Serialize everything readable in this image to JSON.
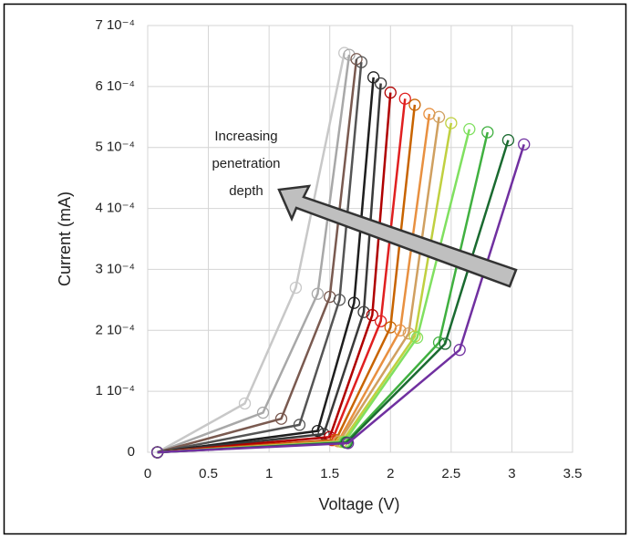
{
  "chart_data": {
    "type": "line",
    "x_label": "Voltage (V)",
    "y_label": "Current (mA)",
    "annotation": [
      "Increasing",
      "penetration",
      "depth"
    ],
    "xlim": [
      0,
      3.5
    ],
    "xticks": [
      0,
      0.5,
      1,
      1.5,
      2,
      2.5,
      3,
      3.5
    ],
    "ylim": [
      0,
      0.0007
    ],
    "yticks": [
      {
        "value": 0,
        "label": "0"
      },
      {
        "value": 0.0001,
        "label": "1 10⁻⁴"
      },
      {
        "value": 0.0002,
        "label": "2 10⁻⁴"
      },
      {
        "value": 0.0003,
        "label": "3 10⁻⁴"
      },
      {
        "value": 0.0004,
        "label": "4 10⁻⁴"
      },
      {
        "value": 0.0005,
        "label": "5 10⁻⁴"
      },
      {
        "value": 0.0006,
        "label": "6 10⁻⁴"
      },
      {
        "value": 0.0007,
        "label": "7 10⁻⁴"
      }
    ],
    "grid": true,
    "series": [
      {
        "color": "#c8c8c8",
        "x": [
          0.08,
          0.8,
          1.22,
          1.62
        ],
        "values": [
          0,
          8e-05,
          0.00027,
          0.000655
        ]
      },
      {
        "color": "#a8a8a8",
        "x": [
          0.08,
          0.95,
          1.4,
          1.66
        ],
        "values": [
          0,
          6.5e-05,
          0.00026,
          0.000652
        ]
      },
      {
        "color": "#7a5a50",
        "x": [
          0.08,
          1.1,
          1.5,
          1.72
        ],
        "values": [
          0,
          5.5e-05,
          0.000255,
          0.000645
        ]
      },
      {
        "color": "#555555",
        "x": [
          0.08,
          1.25,
          1.58,
          1.76
        ],
        "values": [
          0,
          4.5e-05,
          0.00025,
          0.00064
        ]
      },
      {
        "color": "#1e1e1e",
        "x": [
          0.08,
          1.4,
          1.7,
          1.86
        ],
        "values": [
          0,
          3.5e-05,
          0.000245,
          0.000615
        ]
      },
      {
        "color": "#3a3a3a",
        "x": [
          0.08,
          1.45,
          1.78,
          1.92
        ],
        "values": [
          0,
          3e-05,
          0.00023,
          0.000605
        ]
      },
      {
        "color": "#b00000",
        "x": [
          0.08,
          1.5,
          1.85,
          2.0
        ],
        "values": [
          0,
          2.5e-05,
          0.000225,
          0.00059
        ]
      },
      {
        "color": "#e02020",
        "x": [
          0.08,
          1.52,
          1.92,
          2.12
        ],
        "values": [
          0,
          2e-05,
          0.000215,
          0.00058
        ]
      },
      {
        "color": "#c86400",
        "x": [
          0.08,
          1.55,
          2.0,
          2.2
        ],
        "values": [
          0,
          2e-05,
          0.000205,
          0.00057
        ]
      },
      {
        "color": "#e89040",
        "x": [
          0.08,
          1.57,
          2.08,
          2.32
        ],
        "values": [
          0,
          1.8e-05,
          0.0002,
          0.000555
        ]
      },
      {
        "color": "#d0a060",
        "x": [
          0.08,
          1.58,
          2.15,
          2.4
        ],
        "values": [
          0,
          1.8e-05,
          0.000195,
          0.00055
        ]
      },
      {
        "color": "#c0d040",
        "x": [
          0.08,
          1.6,
          2.2,
          2.5
        ],
        "values": [
          0,
          1.7e-05,
          0.00019,
          0.00054
        ]
      },
      {
        "color": "#80e060",
        "x": [
          0.08,
          1.62,
          2.22,
          2.65
        ],
        "values": [
          0,
          1.7e-05,
          0.000188,
          0.00053
        ]
      },
      {
        "color": "#40b040",
        "x": [
          0.08,
          1.63,
          2.4,
          2.8
        ],
        "values": [
          0,
          1.6e-05,
          0.00018,
          0.000525
        ]
      },
      {
        "color": "#1a6a30",
        "x": [
          0.08,
          1.64,
          2.45,
          2.97
        ],
        "values": [
          0,
          1.6e-05,
          0.000178,
          0.000512
        ]
      },
      {
        "color": "#7030a0",
        "x": [
          0.08,
          1.65,
          2.57,
          3.1
        ],
        "values": [
          0,
          1.5e-05,
          0.000168,
          0.000505
        ]
      }
    ]
  }
}
